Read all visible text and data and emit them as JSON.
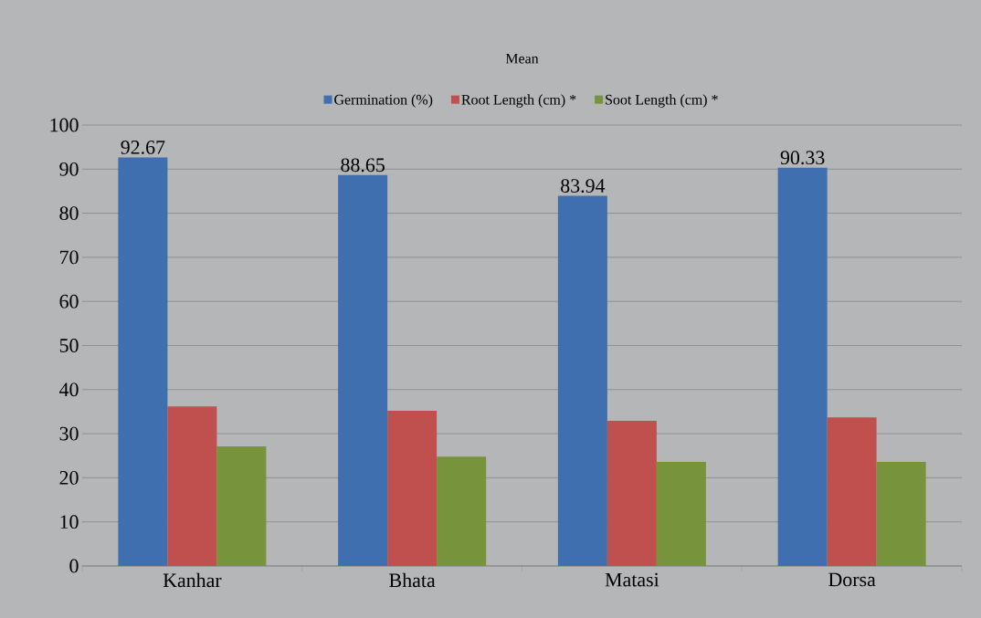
{
  "chart_data": {
    "type": "bar",
    "title": "Mean",
    "categories": [
      "Kanhar",
      "Bhata",
      "Matasi",
      "Dorsa"
    ],
    "series": [
      {
        "name": "Germination (%)",
        "color": "#3f6fae",
        "values": [
          92.67,
          88.65,
          83.94,
          90.33
        ],
        "value_labels": [
          "92.67",
          "88.65",
          "83.94",
          "90.33"
        ]
      },
      {
        "name": "Root Length (cm) *",
        "color": "#c0504d",
        "values": [
          36.2,
          35.2,
          32.9,
          33.7
        ]
      },
      {
        "name": "Soot Length  (cm) *",
        "color": "#77933c",
        "values": [
          27.1,
          24.8,
          23.6,
          23.6
        ]
      }
    ],
    "ylim": [
      0,
      100
    ],
    "yticks": [
      0,
      10,
      20,
      30,
      40,
      50,
      60,
      70,
      80,
      90,
      100
    ],
    "grid": "y",
    "legend": "top"
  }
}
